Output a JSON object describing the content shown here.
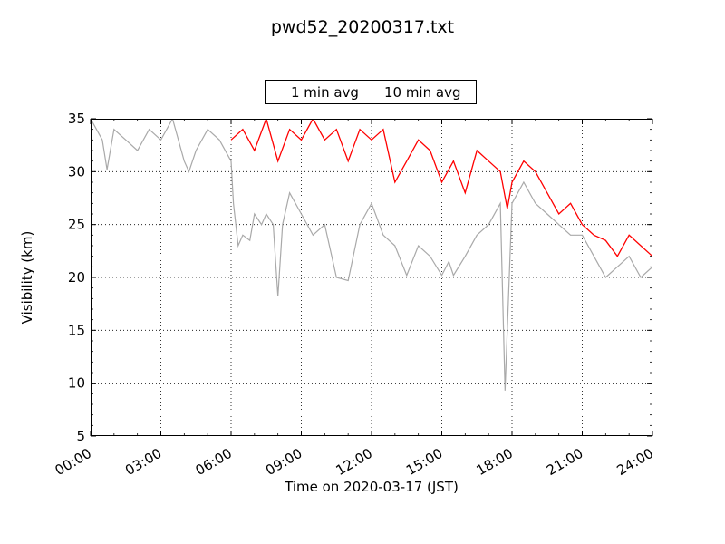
{
  "chart_data": {
    "type": "line",
    "title": "pwd52_20200317.txt",
    "xlabel": "Time on 2020-03-17 (JST)",
    "ylabel": "Visibility (km)",
    "xlim_hours": [
      0,
      24
    ],
    "ylim": [
      5,
      35
    ],
    "x_ticks": [
      "00:00",
      "03:00",
      "06:00",
      "09:00",
      "12:00",
      "15:00",
      "18:00",
      "21:00",
      "24:00"
    ],
    "y_ticks": [
      5,
      10,
      15,
      20,
      25,
      30,
      35
    ],
    "grid": true,
    "legend_position": "top-center",
    "series": [
      {
        "name": "1 min avg",
        "color": "#a9a9a9",
        "x_hours": [
          0,
          0.5,
          0.7,
          1,
          1.5,
          2,
          2.5,
          3,
          3.5,
          4,
          4.2,
          4.5,
          5,
          5.5,
          6,
          6.1,
          6.3,
          6.5,
          6.8,
          7,
          7.3,
          7.5,
          7.8,
          8,
          8.2,
          8.5,
          9,
          9.5,
          10,
          10.5,
          11,
          11.5,
          12,
          12.5,
          13,
          13.5,
          14,
          14.5,
          15,
          15.3,
          15.5,
          16,
          16.5,
          17,
          17.5,
          17.7,
          18,
          18.5,
          19,
          19.5,
          20,
          20.5,
          21,
          21.5,
          22,
          22.5,
          23,
          23.5,
          24
        ],
        "y": [
          35,
          33,
          30.2,
          34,
          33,
          32,
          34,
          33,
          35,
          31,
          30,
          32,
          34,
          33,
          31,
          27,
          23,
          24,
          23.5,
          26,
          25,
          26,
          25,
          18.2,
          25,
          28,
          26,
          24,
          25,
          20,
          19.7,
          25,
          27,
          24,
          23,
          20.2,
          23,
          22,
          20.2,
          21.5,
          20.2,
          22,
          24,
          25,
          27,
          9.3,
          27,
          29,
          27,
          26,
          25,
          24,
          24,
          22,
          20,
          21,
          22,
          20,
          21
        ]
      },
      {
        "name": "10 min avg",
        "color": "#ff0000",
        "x_hours": [
          6,
          6.5,
          7,
          7.5,
          8,
          8.5,
          9,
          9.5,
          10,
          10.5,
          11,
          11.5,
          12,
          12.5,
          13,
          13.5,
          14,
          14.5,
          15,
          15.5,
          16,
          16.5,
          17,
          17.5,
          17.8,
          18,
          18.5,
          19,
          19.5,
          20,
          20.5,
          21,
          21.5,
          22,
          22.5,
          23,
          23.5,
          24
        ],
        "y": [
          33,
          34,
          32,
          35,
          31,
          34,
          33,
          35,
          33,
          34,
          31,
          34,
          33,
          34,
          29,
          31,
          33,
          32,
          29,
          31,
          28,
          32,
          31,
          30,
          26.5,
          29,
          31,
          30,
          28,
          26,
          27,
          25,
          24,
          23.5,
          22,
          24,
          23,
          22
        ]
      }
    ]
  }
}
